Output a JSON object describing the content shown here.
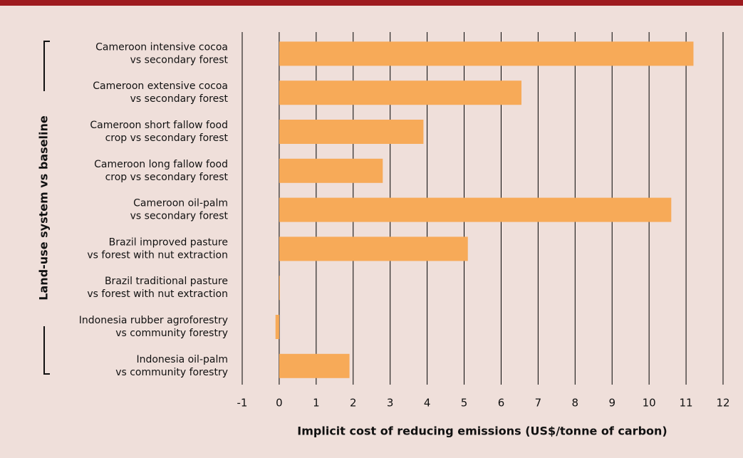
{
  "chart_data": {
    "type": "bar",
    "orientation": "horizontal",
    "xlabel": "Implicit cost of reducing emissions (US$/tonne of carbon)",
    "ylabel": "Land-use system vs baseline",
    "categories": [
      [
        "Cameroon intensive cocoa",
        "vs secondary forest"
      ],
      [
        "Cameroon extensive cocoa",
        "vs secondary forest"
      ],
      [
        "Cameroon short fallow food",
        "crop vs secondary forest"
      ],
      [
        "Cameroon long fallow food",
        "crop vs secondary forest"
      ],
      [
        "Cameroon oil-palm",
        "vs secondary forest"
      ],
      [
        "Brazil improved pasture",
        "vs forest with nut extraction"
      ],
      [
        "Brazil traditional pasture",
        "vs forest with nut extraction"
      ],
      [
        "Indonesia rubber agroforestry",
        "vs community forestry"
      ],
      [
        "Indonesia oil-palm",
        "vs community forestry"
      ]
    ],
    "values": [
      11.2,
      6.55,
      3.9,
      2.8,
      10.6,
      5.1,
      0.02,
      -0.1,
      1.9
    ],
    "color": "#f7aa58",
    "xlim": [
      -1,
      12
    ],
    "xticks": [
      -1,
      0,
      1,
      2,
      3,
      4,
      5,
      6,
      7,
      8,
      9,
      10,
      11,
      12
    ],
    "grid": true
  }
}
